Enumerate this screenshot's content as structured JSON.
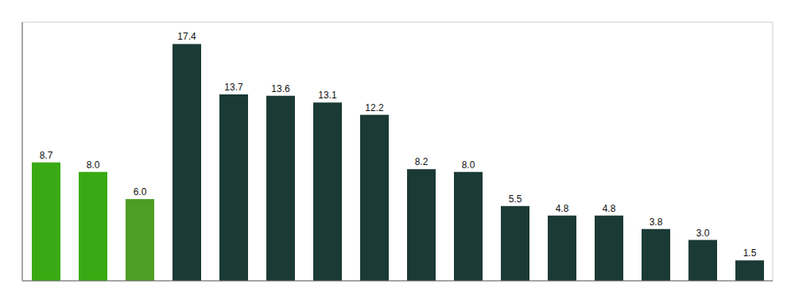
{
  "chart_data": {
    "type": "bar",
    "categories": [
      null,
      null,
      null,
      null,
      null,
      null,
      null,
      null,
      null,
      null,
      null,
      null,
      null,
      null,
      null,
      null
    ],
    "values": [
      8.7,
      8.0,
      6.0,
      17.4,
      13.7,
      13.6,
      13.1,
      12.2,
      8.2,
      8.0,
      5.5,
      4.8,
      4.8,
      3.8,
      3.0,
      1.5
    ],
    "value_labels": [
      "8.7",
      "8.0",
      "6.0",
      "17.4",
      "13.7",
      "13.6",
      "13.1",
      "12.2",
      "8.2",
      "8.0",
      "5.5",
      "4.8",
      "4.8",
      "3.8",
      "3.0",
      "1.5"
    ],
    "colors": [
      "#3aaa14",
      "#3aaa14",
      "#4d9e24",
      "#1b3a35",
      "#1b3a35",
      "#1b3a35",
      "#1b3a35",
      "#1b3a35",
      "#1b3a35",
      "#1b3a35",
      "#1b3a35",
      "#1b3a35",
      "#1b3a35",
      "#1b3a35",
      "#1b3a35",
      "#1b3a35"
    ],
    "ylim": [
      0,
      19
    ],
    "yticks": [
      0,
      2,
      4,
      6,
      8,
      10,
      12,
      14,
      16,
      18
    ],
    "grid": true,
    "data_labels": true,
    "tick_labels": false
  }
}
